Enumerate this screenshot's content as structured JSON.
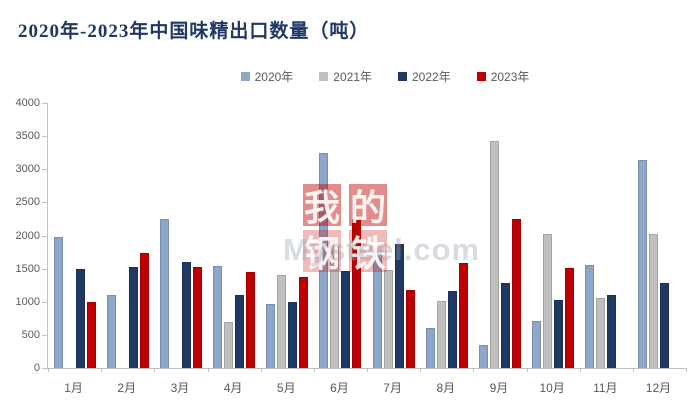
{
  "title": "2020年-2023年中国味精出口数量（吨）",
  "watermark": {
    "line1": "我的",
    "line2": "钢铁",
    "en": "Mysteel.com"
  },
  "colors": {
    "title": "#1f3864",
    "axis_line": "#c0c0c0",
    "axis_text": "#595959",
    "series_2020": "#8fa6cb",
    "series_2021": "#bfbfbf",
    "series_2022": "#1f3864",
    "series_2023": "#c00000"
  },
  "chart_data": {
    "type": "bar",
    "title": "2020年-2023年中国味精出口数量（吨）",
    "xlabel": "",
    "ylabel": "",
    "ylim": [
      0,
      4000
    ],
    "ytick_step": 500,
    "grid": false,
    "legend_position": "top",
    "categories": [
      "1月",
      "2月",
      "3月",
      "4月",
      "5月",
      "6月",
      "7月",
      "8月",
      "9月",
      "10月",
      "11月",
      "12月"
    ],
    "series": [
      {
        "name": "2020年",
        "color": "#8fa6cb",
        "values": [
          1980,
          1100,
          2250,
          1540,
          960,
          3250,
          1760,
          610,
          340,
          710,
          1560,
          3140
        ]
      },
      {
        "name": "2021年",
        "color": "#bfbfbf",
        "values": [
          null,
          null,
          null,
          690,
          1410,
          1840,
          1480,
          1010,
          3420,
          2030,
          1050,
          2030
        ]
      },
      {
        "name": "2022年",
        "color": "#1f3864",
        "values": [
          1500,
          1530,
          1600,
          1100,
          990,
          1470,
          1870,
          1160,
          1290,
          1030,
          1100,
          1280
        ]
      },
      {
        "name": "2023年",
        "color": "#c00000",
        "values": [
          990,
          1740,
          1520,
          1450,
          1380,
          2250,
          1170,
          1590,
          2250,
          1510,
          null,
          null
        ]
      }
    ]
  }
}
